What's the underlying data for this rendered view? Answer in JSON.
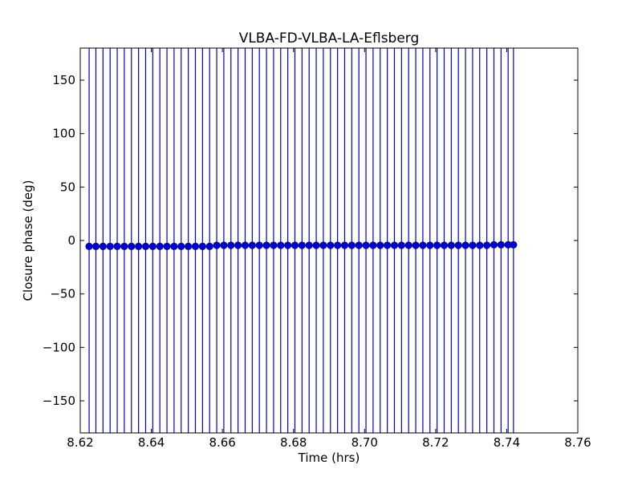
{
  "chart_data": {
    "type": "scatter",
    "title": "VLBA-FD-VLBA-LA-Eflsberg",
    "xlabel": "Time (hrs)",
    "ylabel": "Closure phase (deg)",
    "xlim": [
      8.62,
      8.76
    ],
    "ylim": [
      -180,
      180
    ],
    "xticks": [
      "8.62",
      "8.64",
      "8.66",
      "8.68",
      "8.70",
      "8.72",
      "8.74",
      "8.76"
    ],
    "yticks": [
      "150",
      "100",
      "50",
      "0",
      "−50",
      "−100",
      "−150"
    ],
    "ytick_values": [
      150,
      100,
      50,
      0,
      -50,
      -100,
      -150
    ],
    "xtick_values": [
      8.62,
      8.64,
      8.66,
      8.68,
      8.7,
      8.72,
      8.74,
      8.76
    ],
    "grid": false,
    "marker_color": "#0000cc",
    "errorbar_color": "#0000cc",
    "x": [
      8.6225,
      8.6244,
      8.6264,
      8.6284,
      8.6304,
      8.6324,
      8.6344,
      8.6364,
      8.6384,
      8.6404,
      8.6424,
      8.6444,
      8.6464,
      8.6484,
      8.6504,
      8.6524,
      8.6544,
      8.6564,
      8.6584,
      8.6604,
      8.6624,
      8.6644,
      8.6664,
      8.6684,
      8.6704,
      8.6724,
      8.6744,
      8.6764,
      8.6784,
      8.6804,
      8.6824,
      8.6844,
      8.6864,
      8.6884,
      8.6904,
      8.6924,
      8.6944,
      8.6964,
      8.6984,
      8.7004,
      8.7024,
      8.7044,
      8.7064,
      8.7084,
      8.7104,
      8.7124,
      8.7144,
      8.7164,
      8.7184,
      8.7204,
      8.7224,
      8.7244,
      8.7264,
      8.7284,
      8.7304,
      8.7324,
      8.7344,
      8.7364,
      8.7384,
      8.7404,
      8.7419
    ],
    "y": [
      -5.5,
      -5.5,
      -5.5,
      -5.5,
      -5.5,
      -5.5,
      -5.5,
      -5.5,
      -5.5,
      -5.5,
      -5.5,
      -5.5,
      -5.5,
      -5.5,
      -5.5,
      -5.5,
      -5.5,
      -5.5,
      -4.5,
      -4.5,
      -4.5,
      -4.5,
      -4.5,
      -4.5,
      -4.5,
      -4.5,
      -4.5,
      -4.5,
      -4.5,
      -4.5,
      -4.5,
      -4.5,
      -4.5,
      -4.5,
      -4.5,
      -4.5,
      -4.5,
      -4.5,
      -4.5,
      -4.5,
      -4.5,
      -4.5,
      -4.5,
      -4.5,
      -4.5,
      -4.5,
      -4.5,
      -4.5,
      -4.5,
      -4.5,
      -4.5,
      -4.5,
      -4.5,
      -4.5,
      -4.5,
      -4.5,
      -4.5,
      -4.0,
      -4.0,
      -4.0,
      -4.0
    ],
    "errorbar_range": [
      -180,
      180
    ]
  }
}
